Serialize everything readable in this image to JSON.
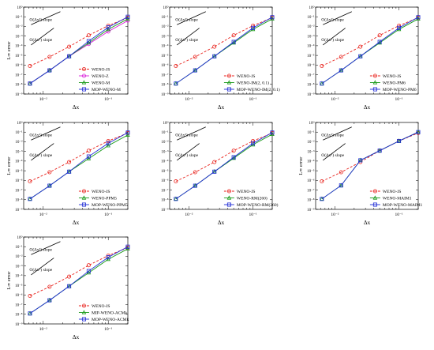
{
  "chart_data": [
    {
      "type": "line",
      "xlabel": "Δx",
      "ylabel": "L∞ error",
      "xscale": "log",
      "yscale": "log",
      "xlim": [
        0.005,
        0.2
      ],
      "ylim": [
        1e-09,
        1.0
      ],
      "x_ticks": [
        {
          "value": 0.01,
          "label": "10⁻²"
        },
        {
          "value": 0.1,
          "label": "10⁻¹"
        }
      ],
      "y_ticks": [
        {
          "value": 1e-09,
          "label": "10⁻⁹"
        },
        {
          "value": 1e-08,
          "label": "10⁻⁸"
        },
        {
          "value": 1e-07,
          "label": "10⁻⁷"
        },
        {
          "value": 1e-06,
          "label": "10⁻⁶"
        },
        {
          "value": 1e-05,
          "label": "10⁻⁵"
        },
        {
          "value": 0.0001,
          "label": "10⁻⁴"
        },
        {
          "value": 0.001,
          "label": "10⁻³"
        },
        {
          "value": 0.01,
          "label": "10⁻²"
        },
        {
          "value": 0.1,
          "label": "10⁻¹"
        },
        {
          "value": 1,
          "label": "10⁰"
        }
      ],
      "x": [
        0.00625,
        0.0125,
        0.025,
        0.05,
        0.1,
        0.2
      ],
      "annotations": [
        {
          "text": "O(Δx³) slope",
          "x": 0.0065,
          "y": 0.015,
          "slope": 3
        },
        {
          "text": "O(Δx⁵) slope",
          "x": 0.0065,
          "y": 0.00012,
          "slope": 5
        }
      ],
      "legend_position": "bottom-right",
      "series": [
        {
          "name": "WENO-JS",
          "marker": "circle",
          "color": "#e8221c",
          "dash": "dashed",
          "values": [
            8e-07,
            7e-06,
            8e-05,
            0.0012,
            0.012,
            0.08
          ]
        },
        {
          "name": "WENO-Z",
          "marker": "circle",
          "color": "#d81bd8",
          "dash": "solid",
          "values": [
            1.2e-08,
            2.8e-07,
            8e-06,
            0.00015,
            0.003,
            0.04
          ]
        },
        {
          "name": "WENO-M",
          "marker": "triangle",
          "color": "#1a9a1a",
          "dash": "solid",
          "values": [
            1.2e-08,
            2.8e-07,
            8e-06,
            0.0002,
            0.005,
            0.06
          ]
        },
        {
          "name": "MOP-WENO-M",
          "marker": "square",
          "color": "#1f2bd6",
          "dash": "solid",
          "values": [
            1.2e-08,
            2.8e-07,
            8e-06,
            0.0003,
            0.008,
            0.1
          ]
        }
      ]
    },
    {
      "type": "line",
      "xlabel": "Δx",
      "ylabel": "",
      "xscale": "log",
      "yscale": "log",
      "xlim": [
        0.005,
        0.2
      ],
      "ylim": [
        1e-09,
        1.0
      ],
      "x_ticks": [
        {
          "value": 0.01,
          "label": "10⁻²"
        },
        {
          "value": 0.1,
          "label": "10⁻¹"
        }
      ],
      "y_ticks": [
        {
          "value": 1e-09,
          "label": "10⁻⁹"
        },
        {
          "value": 1e-08,
          "label": "10⁻⁸"
        },
        {
          "value": 1e-07,
          "label": "10⁻⁷"
        },
        {
          "value": 1e-06,
          "label": "10⁻⁶"
        },
        {
          "value": 1e-05,
          "label": "10⁻⁵"
        },
        {
          "value": 0.0001,
          "label": "10⁻⁴"
        },
        {
          "value": 0.001,
          "label": "10⁻³"
        },
        {
          "value": 0.01,
          "label": "10⁻²"
        },
        {
          "value": 0.1,
          "label": "10⁻¹"
        },
        {
          "value": 1,
          "label": "10⁰"
        }
      ],
      "x": [
        0.00625,
        0.0125,
        0.025,
        0.05,
        0.1,
        0.2
      ],
      "annotations": [
        {
          "text": "O(Δx³) slope",
          "x": 0.0065,
          "y": 0.015,
          "slope": 3
        },
        {
          "text": "O(Δx⁵) slope",
          "x": 0.0065,
          "y": 0.00012,
          "slope": 5
        }
      ],
      "legend_position": "bottom-right",
      "series": [
        {
          "name": "WENO-JS",
          "marker": "circle",
          "color": "#e8221c",
          "dash": "dashed",
          "values": [
            8e-07,
            7e-06,
            8e-05,
            0.0012,
            0.012,
            0.08
          ]
        },
        {
          "name": "WENO-IM(2, 0.1)",
          "marker": "triangle",
          "color": "#1a9a1a",
          "dash": "solid",
          "values": [
            1.2e-08,
            2.8e-07,
            8e-06,
            0.0002,
            0.005,
            0.06
          ]
        },
        {
          "name": "MOP-WENO-IM(2, 0.1)",
          "marker": "square",
          "color": "#1f2bd6",
          "dash": "solid",
          "values": [
            1.2e-08,
            2.8e-07,
            8e-06,
            0.00025,
            0.007,
            0.09
          ]
        }
      ]
    },
    {
      "type": "line",
      "xlabel": "Δx",
      "ylabel": "",
      "xscale": "log",
      "yscale": "log",
      "xlim": [
        0.005,
        0.2
      ],
      "ylim": [
        1e-09,
        1.0
      ],
      "x_ticks": [
        {
          "value": 0.01,
          "label": "10⁻²"
        },
        {
          "value": 0.1,
          "label": "10⁻¹"
        }
      ],
      "y_ticks": [
        {
          "value": 1e-09,
          "label": "10⁻⁹"
        },
        {
          "value": 1e-08,
          "label": "10⁻⁸"
        },
        {
          "value": 1e-07,
          "label": "10⁻⁷"
        },
        {
          "value": 1e-06,
          "label": "10⁻⁶"
        },
        {
          "value": 1e-05,
          "label": "10⁻⁵"
        },
        {
          "value": 0.0001,
          "label": "10⁻⁴"
        },
        {
          "value": 0.001,
          "label": "10⁻³"
        },
        {
          "value": 0.01,
          "label": "10⁻²"
        },
        {
          "value": 0.1,
          "label": "10⁻¹"
        },
        {
          "value": 1,
          "label": "10⁰"
        }
      ],
      "x": [
        0.00625,
        0.0125,
        0.025,
        0.05,
        0.1,
        0.2
      ],
      "annotations": [
        {
          "text": "O(Δx³) slope",
          "x": 0.0065,
          "y": 0.015,
          "slope": 3
        },
        {
          "text": "O(Δx⁵) slope",
          "x": 0.0065,
          "y": 0.00012,
          "slope": 5
        }
      ],
      "legend_position": "bottom-right",
      "series": [
        {
          "name": "WENO-JS",
          "marker": "circle",
          "color": "#e8221c",
          "dash": "dashed",
          "values": [
            8e-07,
            7e-06,
            8e-05,
            0.0012,
            0.012,
            0.08
          ]
        },
        {
          "name": "WENO-PM6",
          "marker": "triangle",
          "color": "#1a9a1a",
          "dash": "solid",
          "values": [
            1.2e-08,
            2.8e-07,
            8e-06,
            0.0002,
            0.005,
            0.06
          ]
        },
        {
          "name": "MOP-WENO-PM6",
          "marker": "square",
          "color": "#1f2bd6",
          "dash": "solid",
          "values": [
            1.2e-08,
            2.8e-07,
            8e-06,
            0.00025,
            0.007,
            0.09
          ]
        }
      ]
    },
    {
      "type": "line",
      "xlabel": "Δx",
      "ylabel": "L∞ error",
      "xscale": "log",
      "yscale": "log",
      "xlim": [
        0.005,
        0.2
      ],
      "ylim": [
        1e-09,
        1.0
      ],
      "x_ticks": [
        {
          "value": 0.01,
          "label": "10⁻²"
        },
        {
          "value": 0.1,
          "label": "10⁻¹"
        }
      ],
      "y_ticks": [
        {
          "value": 1e-09,
          "label": "10⁻⁹"
        },
        {
          "value": 1e-08,
          "label": "10⁻⁸"
        },
        {
          "value": 1e-07,
          "label": "10⁻⁷"
        },
        {
          "value": 1e-06,
          "label": "10⁻⁶"
        },
        {
          "value": 1e-05,
          "label": "10⁻⁵"
        },
        {
          "value": 0.0001,
          "label": "10⁻⁴"
        },
        {
          "value": 0.001,
          "label": "10⁻³"
        },
        {
          "value": 0.01,
          "label": "10⁻²"
        },
        {
          "value": 0.1,
          "label": "10⁻¹"
        },
        {
          "value": 1,
          "label": "10⁰"
        }
      ],
      "x": [
        0.00625,
        0.0125,
        0.025,
        0.05,
        0.1,
        0.2
      ],
      "annotations": [
        {
          "text": "O(Δx³) slope",
          "x": 0.0065,
          "y": 0.015,
          "slope": 3
        },
        {
          "text": "O(Δx⁵) slope",
          "x": 0.0065,
          "y": 0.00012,
          "slope": 5
        }
      ],
      "legend_position": "bottom-right",
      "series": [
        {
          "name": "WENO-JS",
          "marker": "circle",
          "color": "#e8221c",
          "dash": "dashed",
          "values": [
            8e-07,
            7e-06,
            8e-05,
            0.0012,
            0.012,
            0.08
          ]
        },
        {
          "name": "WENO-PPM5",
          "marker": "triangle",
          "color": "#1a9a1a",
          "dash": "solid",
          "values": [
            1.2e-08,
            2.8e-07,
            8e-06,
            0.00018,
            0.004,
            0.05
          ]
        },
        {
          "name": "MOP-WENO-PPM5",
          "marker": "square",
          "color": "#1f2bd6",
          "dash": "solid",
          "values": [
            1.2e-08,
            2.8e-07,
            8e-06,
            0.0003,
            0.007,
            0.09
          ]
        }
      ]
    },
    {
      "type": "line",
      "xlabel": "Δx",
      "ylabel": "",
      "xscale": "log",
      "yscale": "log",
      "xlim": [
        0.005,
        0.2
      ],
      "ylim": [
        1e-09,
        1.0
      ],
      "x_ticks": [
        {
          "value": 0.01,
          "label": "10⁻²"
        },
        {
          "value": 0.1,
          "label": "10⁻¹"
        }
      ],
      "y_ticks": [
        {
          "value": 1e-09,
          "label": "10⁻⁹"
        },
        {
          "value": 1e-08,
          "label": "10⁻⁸"
        },
        {
          "value": 1e-07,
          "label": "10⁻⁷"
        },
        {
          "value": 1e-06,
          "label": "10⁻⁶"
        },
        {
          "value": 1e-05,
          "label": "10⁻⁵"
        },
        {
          "value": 0.0001,
          "label": "10⁻⁴"
        },
        {
          "value": 0.001,
          "label": "10⁻³"
        },
        {
          "value": 0.01,
          "label": "10⁻²"
        },
        {
          "value": 0.1,
          "label": "10⁻¹"
        },
        {
          "value": 1,
          "label": "10⁰"
        }
      ],
      "x": [
        0.00625,
        0.0125,
        0.025,
        0.05,
        0.1,
        0.2
      ],
      "annotations": [
        {
          "text": "O(Δx³) slope",
          "x": 0.0065,
          "y": 0.015,
          "slope": 3
        },
        {
          "text": "O(Δx⁵) slope",
          "x": 0.0065,
          "y": 0.00012,
          "slope": 5
        }
      ],
      "legend_position": "bottom-right",
      "series": [
        {
          "name": "WENO-JS",
          "marker": "circle",
          "color": "#e8221c",
          "dash": "dashed",
          "values": [
            8e-07,
            7e-06,
            8e-05,
            0.0012,
            0.012,
            0.08
          ]
        },
        {
          "name": "WENO-RM(260)",
          "marker": "triangle",
          "color": "#1a9a1a",
          "dash": "solid",
          "values": [
            1.2e-08,
            2.8e-07,
            8e-06,
            0.0002,
            0.005,
            0.06
          ]
        },
        {
          "name": "MOP-WENO-RM(260)",
          "marker": "square",
          "color": "#1f2bd6",
          "dash": "solid",
          "values": [
            1.2e-08,
            2.8e-07,
            8e-06,
            0.00025,
            0.007,
            0.09
          ]
        }
      ]
    },
    {
      "type": "line",
      "xlabel": "Δx",
      "ylabel": "L∞ error",
      "xscale": "log",
      "yscale": "log",
      "xlim": [
        0.005,
        0.2
      ],
      "ylim": [
        1e-09,
        1.0
      ],
      "x_ticks": [
        {
          "value": 0.01,
          "label": "10⁻²"
        },
        {
          "value": 0.1,
          "label": "10⁻¹"
        }
      ],
      "y_ticks": [
        {
          "value": 1e-09,
          "label": "10⁻⁹"
        },
        {
          "value": 1e-08,
          "label": "10⁻⁸"
        },
        {
          "value": 1e-07,
          "label": "10⁻⁷"
        },
        {
          "value": 1e-06,
          "label": "10⁻⁶"
        },
        {
          "value": 1e-05,
          "label": "10⁻⁵"
        },
        {
          "value": 0.0001,
          "label": "10⁻⁴"
        },
        {
          "value": 0.001,
          "label": "10⁻³"
        },
        {
          "value": 0.01,
          "label": "10⁻²"
        },
        {
          "value": 0.1,
          "label": "10⁻¹"
        },
        {
          "value": 1,
          "label": "10⁰"
        }
      ],
      "x": [
        0.00625,
        0.0125,
        0.025,
        0.05,
        0.1,
        0.2
      ],
      "annotations": [
        {
          "text": "O(Δx³) slope",
          "x": 0.0065,
          "y": 0.015,
          "slope": 3
        },
        {
          "text": "O(Δx⁵) slope",
          "x": 0.0065,
          "y": 0.00012,
          "slope": 5
        }
      ],
      "legend_position": "bottom-right",
      "series": [
        {
          "name": "WENO-JS",
          "marker": "circle",
          "color": "#e8221c",
          "dash": "dashed",
          "values": [
            8e-07,
            7e-06,
            8e-05,
            0.0012,
            0.012,
            0.08
          ]
        },
        {
          "name": "WENO-MAIM1",
          "marker": "triangle",
          "color": "#1a9a1a",
          "dash": "solid",
          "values": [
            1.2e-08,
            3e-07,
            0.00012,
            0.0012,
            0.012,
            0.1
          ]
        },
        {
          "name": "MOP-WENO-MAIM1",
          "marker": "square",
          "color": "#1f2bd6",
          "dash": "solid",
          "values": [
            1.2e-08,
            3e-07,
            0.00012,
            0.0012,
            0.012,
            0.1
          ]
        }
      ]
    },
    {
      "type": "line",
      "xlabel": "Δx",
      "ylabel": "L∞ error",
      "xscale": "log",
      "yscale": "log",
      "xlim": [
        0.005,
        0.2
      ],
      "ylim": [
        1e-09,
        1.0
      ],
      "x_ticks": [
        {
          "value": 0.01,
          "label": "10⁻²"
        },
        {
          "value": 0.1,
          "label": "10⁻¹"
        }
      ],
      "y_ticks": [
        {
          "value": 1e-09,
          "label": "10⁻⁹"
        },
        {
          "value": 1e-08,
          "label": "10⁻⁸"
        },
        {
          "value": 1e-07,
          "label": "10⁻⁷"
        },
        {
          "value": 1e-06,
          "label": "10⁻⁶"
        },
        {
          "value": 1e-05,
          "label": "10⁻⁵"
        },
        {
          "value": 0.0001,
          "label": "10⁻⁴"
        },
        {
          "value": 0.001,
          "label": "10⁻³"
        },
        {
          "value": 0.01,
          "label": "10⁻²"
        },
        {
          "value": 0.1,
          "label": "10⁻¹"
        },
        {
          "value": 1,
          "label": "10⁰"
        }
      ],
      "x": [
        0.00625,
        0.0125,
        0.025,
        0.05,
        0.1,
        0.2
      ],
      "annotations": [
        {
          "text": "O(Δx³) slope",
          "x": 0.0065,
          "y": 0.015,
          "slope": 3
        },
        {
          "text": "O(Δx⁵) slope",
          "x": 0.0065,
          "y": 0.00012,
          "slope": 5
        }
      ],
      "legend_position": "bottom-right",
      "series": [
        {
          "name": "WENO-JS",
          "marker": "circle",
          "color": "#e8221c",
          "dash": "dashed",
          "values": [
            8e-07,
            7e-06,
            8e-05,
            0.0012,
            0.012,
            0.08
          ]
        },
        {
          "name": "MIP-WENO-ACMk",
          "marker": "triangle",
          "color": "#1a9a1a",
          "dash": "solid",
          "values": [
            1.2e-08,
            2.8e-07,
            8e-06,
            0.0002,
            0.005,
            0.06
          ]
        },
        {
          "name": "MOP-WENO-ACMk",
          "marker": "square",
          "color": "#1f2bd6",
          "dash": "solid",
          "values": [
            1.2e-08,
            2.8e-07,
            8e-06,
            0.0003,
            0.008,
            0.1
          ]
        }
      ]
    }
  ]
}
